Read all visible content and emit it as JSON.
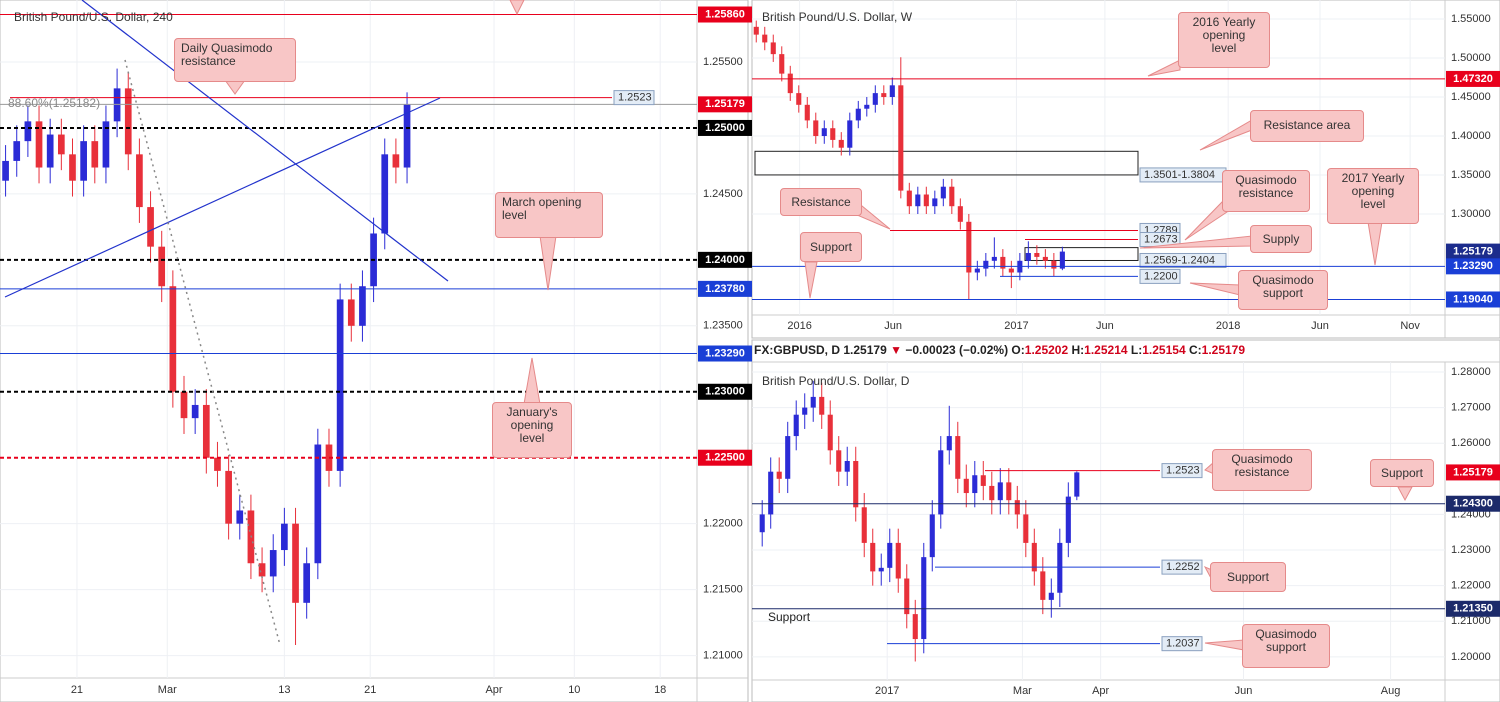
{
  "chart_data": [
    {
      "type": "candlestick",
      "title": "British Pound/U.S. Dollar, 240",
      "up_color": "#2b2bd6",
      "down_color": "#e8303a",
      "grid": true,
      "xlim": [
        -0.5,
        62
      ],
      "xticks": [
        {
          "value": 6.4,
          "label": "21"
        },
        {
          "value": 14.5,
          "label": "Mar"
        },
        {
          "value": 25,
          "label": "13"
        },
        {
          "value": 32.7,
          "label": "21"
        },
        {
          "value": 43.8,
          "label": "Apr"
        },
        {
          "value": 51,
          "label": "10"
        },
        {
          "value": 58.7,
          "label": "18"
        }
      ],
      "ylim": [
        1.2083,
        1.2597
      ],
      "yticks": [
        {
          "value": 1.255,
          "label": "1.25500"
        },
        {
          "value": 1.245,
          "label": "1.24500"
        },
        {
          "value": 1.235,
          "label": "1.23500"
        },
        {
          "value": 1.22,
          "label": "1.22000"
        },
        {
          "value": 1.215,
          "label": "1.21500"
        },
        {
          "value": 1.21,
          "label": "1.21000"
        }
      ],
      "open": [
        1.246,
        1.2475,
        1.249,
        1.2505,
        1.247,
        1.2495,
        1.248,
        1.246,
        1.249,
        1.247,
        1.2505,
        1.253,
        1.248,
        1.244,
        1.241,
        1.238,
        1.23,
        1.228,
        1.229,
        1.225,
        1.224,
        1.22,
        1.221,
        1.217,
        1.216,
        1.218,
        1.22,
        1.214,
        1.217,
        1.226,
        1.224,
        1.237,
        1.235,
        1.238,
        1.242,
        1.248,
        1.247
      ],
      "high": [
        1.2487,
        1.2502,
        1.2517,
        1.2517,
        1.2507,
        1.2507,
        1.2492,
        1.2502,
        1.2502,
        1.2517,
        1.2545,
        1.2542,
        1.2492,
        1.2452,
        1.2422,
        1.2392,
        1.2312,
        1.2302,
        1.2302,
        1.2262,
        1.2252,
        1.2222,
        1.2222,
        1.2182,
        1.2192,
        1.2212,
        1.2212,
        1.2182,
        1.2272,
        1.2272,
        1.2382,
        1.2382,
        1.2392,
        1.2432,
        1.2492,
        1.2492,
        1.2527
      ],
      "low": [
        1.2448,
        1.2463,
        1.2478,
        1.2458,
        1.2458,
        1.2468,
        1.2448,
        1.2448,
        1.2458,
        1.2458,
        1.2493,
        1.2468,
        1.2428,
        1.2398,
        1.2368,
        1.2288,
        1.2268,
        1.2268,
        1.2238,
        1.2228,
        1.2188,
        1.2188,
        1.2158,
        1.2148,
        1.2148,
        1.2168,
        1.2108,
        1.2128,
        1.2158,
        1.2228,
        1.2228,
        1.2338,
        1.2338,
        1.2368,
        1.2408,
        1.2458,
        1.2458
      ],
      "close": [
        1.2475,
        1.249,
        1.2505,
        1.247,
        1.2495,
        1.248,
        1.246,
        1.249,
        1.247,
        1.2505,
        1.253,
        1.248,
        1.244,
        1.241,
        1.238,
        1.23,
        1.228,
        1.229,
        1.225,
        1.224,
        1.22,
        1.221,
        1.217,
        1.216,
        1.218,
        1.22,
        1.214,
        1.217,
        1.226,
        1.224,
        1.237,
        1.235,
        1.238,
        1.242,
        1.248,
        1.247,
        1.2518
      ],
      "levels": [
        {
          "value": 1.2586,
          "label": "1.25860",
          "color": "#e8001c",
          "line": "solid",
          "line_color": "#e8001c",
          "label_position": "axis"
        },
        {
          "value": 1.25179,
          "label": "1.25179",
          "color": "#e8001c",
          "line": "solid",
          "line_color": "#9a9a9a",
          "label_position": "axis"
        },
        {
          "value": 1.25,
          "label": "1.25000",
          "color": "#000000",
          "line": "dashed",
          "line_color": "#000000",
          "label_position": "axis"
        },
        {
          "value": 1.24,
          "label": "1.24000",
          "color": "#000000",
          "line": "dashed",
          "line_color": "#000000",
          "label_position": "axis"
        },
        {
          "value": 1.2378,
          "label": "1.23780",
          "color": "#1a3fd6",
          "line": "solid",
          "line_color": "#1a3fd6",
          "label_position": "axis"
        },
        {
          "value": 1.2329,
          "label": "1.23290",
          "color": "#1a3fd6",
          "line": "solid",
          "line_color": "#1a3fd6",
          "label_position": "axis"
        },
        {
          "value": 1.23,
          "label": "1.23000",
          "color": "#000000",
          "line": "dashed",
          "line_color": "#000000",
          "label_position": "axis"
        },
        {
          "value": 1.225,
          "label": "1.22500",
          "color": "#e8001c",
          "line": "dashed",
          "line_color": "#e8001c",
          "label_position": "axis"
        },
        {
          "value": 1.2523,
          "label": "1.2523",
          "color": "#e3ecf6",
          "line": "solid",
          "line_color": "#e8001c",
          "label_position": "plot"
        }
      ],
      "annotations": [
        {
          "lines": [
            "Daily Quasimodo",
            "resistance"
          ]
        },
        {
          "lines": [
            "March opening",
            "level"
          ]
        },
        {
          "lines": [
            "January's",
            "opening",
            "level"
          ]
        },
        {
          "lines": [
            "88.60%(1.25182)"
          ]
        }
      ]
    },
    {
      "type": "candlestick",
      "title": "British Pound/U.S. Dollar, W",
      "up_color": "#2b2bd6",
      "down_color": "#e8303a",
      "grid": true,
      "xlim": [
        -0.5,
        81
      ],
      "xticks": [
        {
          "value": 5.1,
          "label": "2016"
        },
        {
          "value": 16.1,
          "label": "Jun"
        },
        {
          "value": 30.6,
          "label": "2017"
        },
        {
          "value": 41,
          "label": "Jun"
        },
        {
          "value": 55.5,
          "label": "2018"
        },
        {
          "value": 66.3,
          "label": "Jun"
        },
        {
          "value": 76.9,
          "label": "Nov"
        }
      ],
      "ylim": [
        1.1705,
        1.5744
      ],
      "yticks": [
        {
          "value": 1.55,
          "label": "1.55000"
        },
        {
          "value": 1.5,
          "label": "1.50000"
        },
        {
          "value": 1.45,
          "label": "1.45000"
        },
        {
          "value": 1.4,
          "label": "1.40000"
        },
        {
          "value": 1.35,
          "label": "1.35000"
        },
        {
          "value": 1.3,
          "label": "1.30000"
        }
      ],
      "open": [
        1.54,
        1.53,
        1.52,
        1.505,
        1.48,
        1.455,
        1.44,
        1.42,
        1.4,
        1.41,
        1.395,
        1.385,
        1.42,
        1.435,
        1.44,
        1.455,
        1.45,
        1.465,
        1.33,
        1.31,
        1.325,
        1.31,
        1.32,
        1.335,
        1.31,
        1.29,
        1.225,
        1.23,
        1.24,
        1.245,
        1.23,
        1.225,
        1.24,
        1.25,
        1.245,
        1.24,
        1.23
      ],
      "high": [
        1.548,
        1.54,
        1.53,
        1.515,
        1.49,
        1.465,
        1.45,
        1.43,
        1.42,
        1.42,
        1.405,
        1.43,
        1.445,
        1.45,
        1.465,
        1.465,
        1.475,
        1.501,
        1.34,
        1.335,
        1.335,
        1.33,
        1.345,
        1.345,
        1.32,
        1.3,
        1.24,
        1.25,
        1.27,
        1.255,
        1.24,
        1.25,
        1.265,
        1.26,
        1.255,
        1.25,
        1.258
      ],
      "low": [
        1.52,
        1.51,
        1.495,
        1.47,
        1.445,
        1.43,
        1.41,
        1.39,
        1.39,
        1.385,
        1.375,
        1.375,
        1.41,
        1.425,
        1.43,
        1.44,
        1.44,
        1.32,
        1.3,
        1.3,
        1.3,
        1.3,
        1.31,
        1.3,
        1.28,
        1.19,
        1.215,
        1.22,
        1.23,
        1.22,
        1.205,
        1.215,
        1.23,
        1.235,
        1.23,
        1.22,
        1.228
      ],
      "close": [
        1.53,
        1.52,
        1.505,
        1.48,
        1.455,
        1.44,
        1.42,
        1.4,
        1.41,
        1.395,
        1.385,
        1.42,
        1.435,
        1.44,
        1.455,
        1.45,
        1.465,
        1.33,
        1.31,
        1.325,
        1.31,
        1.32,
        1.335,
        1.31,
        1.29,
        1.225,
        1.23,
        1.24,
        1.245,
        1.23,
        1.225,
        1.24,
        1.25,
        1.245,
        1.24,
        1.23,
        1.2518
      ],
      "levels": [
        {
          "value": 1.4732,
          "label": "1.47320",
          "color": "#e8001c",
          "line": "solid",
          "line_color": "#e8001c",
          "label_position": "axis"
        },
        {
          "value": 1.25179,
          "label": "1.25179",
          "color": "#1c2c8c",
          "line": "none",
          "line_color": "#1c2c8c",
          "label_position": "axis"
        },
        {
          "value": 1.2329,
          "label": "1.23290",
          "color": "#1a3fd6",
          "line": "solid",
          "line_color": "#1a3fd6",
          "label_position": "axis"
        },
        {
          "value": 1.1904,
          "label": "1.19040",
          "color": "#1a3fd6",
          "line": "solid",
          "line_color": "#1a3fd6",
          "label_position": "axis"
        },
        {
          "value": 1.2789,
          "label": "1.2789",
          "color": "#e3ecf6",
          "line": "solid",
          "line_color": "#e8001c",
          "label_position": "plot"
        },
        {
          "value": 1.2673,
          "label": "1.2673",
          "color": "#e3ecf6",
          "line": "solid",
          "line_color": "#e8001c",
          "label_position": "plot"
        },
        {
          "value": 1.22,
          "label": "1.2200",
          "color": "#e3ecf6",
          "line": "solid",
          "line_color": "#1a3fd6",
          "label_position": "plot"
        }
      ],
      "zones": [
        {
          "low": 1.3501,
          "high": 1.3804,
          "label": "1.3501-1.3804"
        },
        {
          "low": 1.2404,
          "high": 1.2569,
          "label": "1.2569-1.2404"
        }
      ],
      "annotations": [
        {
          "lines": [
            "2016 Yearly",
            "opening",
            "level"
          ]
        },
        {
          "lines": [
            "Resistance area"
          ]
        },
        {
          "lines": [
            "Resistance"
          ]
        },
        {
          "lines": [
            "Quasimodo",
            "resistance"
          ]
        },
        {
          "lines": [
            "2017 Yearly",
            "opening",
            "level"
          ]
        },
        {
          "lines": [
            "Supply"
          ]
        },
        {
          "lines": [
            "Support"
          ]
        },
        {
          "lines": [
            "Quasimodo",
            "support"
          ]
        }
      ]
    },
    {
      "type": "candlestick",
      "title": "British Pound/U.S. Dollar, D",
      "header": {
        "symbol": "FX:GBPUSD, D",
        "price": "1.25179",
        "arrow": "▼",
        "change": "−0.00023 (−0.02%)",
        "ohlc": [
          {
            "label": "O:",
            "value": "1.25202"
          },
          {
            "label": "H:",
            "value": "1.25214"
          },
          {
            "label": "L:",
            "value": "1.25154"
          },
          {
            "label": "C:",
            "value": "1.25179"
          }
        ]
      },
      "up_color": "#2b2bd6",
      "down_color": "#e8303a",
      "grid": true,
      "xlim": [
        -1.2,
        80.3
      ],
      "xticks": [
        {
          "value": 14.7,
          "label": "2017"
        },
        {
          "value": 30.6,
          "label": "Mar"
        },
        {
          "value": 39.8,
          "label": "Apr"
        },
        {
          "value": 56.6,
          "label": "Jun"
        },
        {
          "value": 73.9,
          "label": "Aug"
        }
      ],
      "ylim": [
        1.1935,
        1.2828
      ],
      "yticks": [
        {
          "value": 1.28,
          "label": "1.28000"
        },
        {
          "value": 1.27,
          "label": "1.27000"
        },
        {
          "value": 1.26,
          "label": "1.26000"
        },
        {
          "value": 1.24,
          "label": "1.24000"
        },
        {
          "value": 1.23,
          "label": "1.23000"
        },
        {
          "value": 1.22,
          "label": "1.22000"
        },
        {
          "value": 1.21,
          "label": "1.21000"
        },
        {
          "value": 1.2,
          "label": "1.20000"
        }
      ],
      "open": [
        1.235,
        1.24,
        1.252,
        1.25,
        1.262,
        1.268,
        1.27,
        1.273,
        1.268,
        1.258,
        1.252,
        1.255,
        1.242,
        1.232,
        1.224,
        1.225,
        1.232,
        1.222,
        1.212,
        1.205,
        1.228,
        1.24,
        1.258,
        1.262,
        1.25,
        1.246,
        1.251,
        1.248,
        1.244,
        1.249,
        1.244,
        1.24,
        1.232,
        1.224,
        1.216,
        1.218,
        1.232,
        1.245
      ],
      "high": [
        1.244,
        1.256,
        1.256,
        1.266,
        1.272,
        1.274,
        1.2775,
        1.277,
        1.272,
        1.262,
        1.259,
        1.259,
        1.246,
        1.236,
        1.229,
        1.236,
        1.236,
        1.226,
        1.216,
        1.232,
        1.244,
        1.262,
        1.2705,
        1.266,
        1.254,
        1.255,
        1.255,
        1.252,
        1.253,
        1.253,
        1.248,
        1.244,
        1.236,
        1.228,
        1.222,
        1.236,
        1.249,
        1.2521
      ],
      "low": [
        1.231,
        1.236,
        1.246,
        1.246,
        1.258,
        1.264,
        1.266,
        1.264,
        1.254,
        1.248,
        1.248,
        1.238,
        1.228,
        1.22,
        1.22,
        1.221,
        1.218,
        1.208,
        1.1987,
        1.201,
        1.224,
        1.236,
        1.254,
        1.246,
        1.242,
        1.242,
        1.244,
        1.24,
        1.24,
        1.24,
        1.236,
        1.228,
        1.22,
        1.212,
        1.211,
        1.214,
        1.228,
        1.244
      ],
      "close": [
        1.24,
        1.252,
        1.25,
        1.262,
        1.268,
        1.27,
        1.273,
        1.268,
        1.258,
        1.252,
        1.255,
        1.242,
        1.232,
        1.224,
        1.225,
        1.232,
        1.222,
        1.212,
        1.205,
        1.228,
        1.24,
        1.258,
        1.262,
        1.25,
        1.246,
        1.251,
        1.248,
        1.244,
        1.249,
        1.244,
        1.24,
        1.232,
        1.224,
        1.216,
        1.218,
        1.232,
        1.245,
        1.2518
      ],
      "levels": [
        {
          "value": 1.25179,
          "label": "1.25179",
          "color": "#e8001c",
          "line": "none",
          "line_color": "#e8001c",
          "label_position": "axis"
        },
        {
          "value": 1.243,
          "label": "1.24300",
          "color": "#1c2a6a",
          "line": "solid",
          "line_color": "#1c2a6a",
          "label_position": "axis"
        },
        {
          "value": 1.2135,
          "label": "1.21350",
          "color": "#1c2a6a",
          "line": "solid",
          "line_color": "#1c2a6a",
          "label_position": "axis"
        },
        {
          "value": 1.2523,
          "label": "1.2523",
          "color": "#e3ecf6",
          "line": "solid",
          "line_color": "#e8001c",
          "label_position": "plot"
        },
        {
          "value": 1.2252,
          "label": "1.2252",
          "color": "#e3ecf6",
          "line": "solid",
          "line_color": "#1a3fd6",
          "label_position": "plot"
        },
        {
          "value": 1.2037,
          "label": "1.2037",
          "color": "#e3ecf6",
          "line": "solid",
          "line_color": "#1a3fd6",
          "label_position": "plot"
        }
      ],
      "annotations": [
        {
          "lines": [
            "Quasimodo",
            "resistance"
          ]
        },
        {
          "lines": [
            "Support"
          ]
        },
        {
          "lines": [
            "Support"
          ]
        },
        {
          "lines": [
            "Quasimodo",
            "support"
          ]
        },
        {
          "lines": [
            "Support"
          ]
        }
      ]
    }
  ]
}
